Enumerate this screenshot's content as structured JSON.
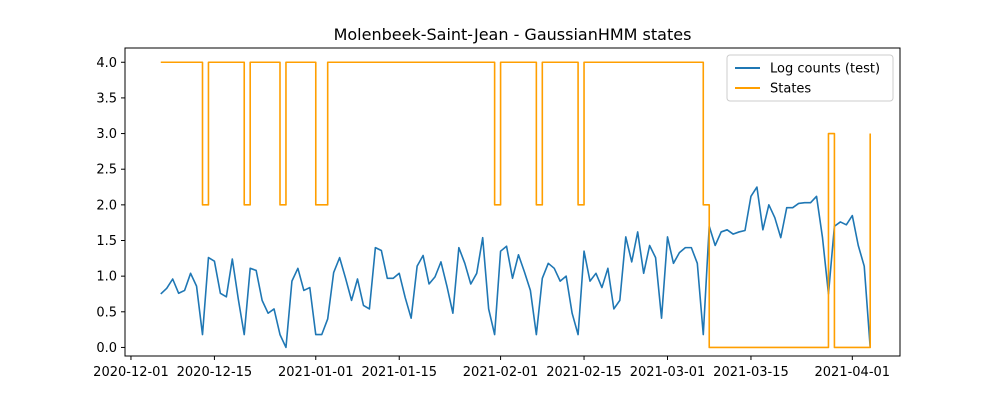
{
  "chart_data": {
    "type": "line",
    "title": "Molenbeek-Saint-Jean - GaussianHMM states",
    "xlabel": "",
    "ylabel": "",
    "x_start": "2020-12-06",
    "x_step_days": 1,
    "xlim": [
      "2020-11-30",
      "2021-04-09"
    ],
    "ylim": [
      -0.12,
      4.2
    ],
    "x_ticks": [
      "2020-12-01",
      "2020-12-15",
      "2021-01-01",
      "2021-01-15",
      "2021-02-01",
      "2021-02-15",
      "2021-03-01",
      "2021-03-15",
      "2021-04-01"
    ],
    "y_ticks": [
      "0.0",
      "0.5",
      "1.0",
      "1.5",
      "2.0",
      "2.5",
      "3.0",
      "3.5",
      "4.0"
    ],
    "legend_position": "top-right",
    "grid": false,
    "series": [
      {
        "name": "Log counts (test)",
        "color": "#1f77b4",
        "values": [
          0.75,
          0.83,
          0.96,
          0.76,
          0.8,
          1.04,
          0.86,
          0.18,
          1.26,
          1.21,
          0.76,
          0.71,
          1.24,
          0.68,
          0.18,
          1.11,
          1.08,
          0.66,
          0.48,
          0.54,
          0.18,
          0.0,
          0.93,
          1.11,
          0.8,
          0.84,
          0.18,
          0.18,
          0.4,
          1.05,
          1.26,
          0.97,
          0.66,
          0.96,
          0.59,
          0.54,
          1.4,
          1.36,
          0.97,
          0.97,
          1.04,
          0.7,
          0.41,
          1.14,
          1.29,
          0.89,
          0.99,
          1.2,
          0.86,
          0.48,
          1.4,
          1.18,
          0.89,
          1.04,
          1.54,
          0.54,
          0.18,
          1.35,
          1.42,
          0.97,
          1.3,
          1.06,
          0.8,
          0.18,
          0.97,
          1.18,
          1.11,
          0.93,
          1.0,
          0.48,
          0.18,
          1.35,
          0.93,
          1.04,
          0.84,
          1.11,
          0.54,
          0.66,
          1.55,
          1.2,
          1.62,
          1.04,
          1.43,
          1.26,
          0.41,
          1.55,
          1.18,
          1.33,
          1.4,
          1.4,
          1.18,
          0.18,
          1.7,
          1.43,
          1.62,
          1.65,
          1.59,
          1.62,
          1.64,
          2.12,
          2.25,
          1.65,
          2.0,
          1.82,
          1.54,
          1.96,
          1.96,
          2.02,
          2.03,
          2.03,
          2.12,
          1.54,
          0.75,
          1.7,
          1.76,
          1.72,
          1.85,
          1.43,
          1.14,
          0.0
        ]
      },
      {
        "name": "States",
        "color": "#ff9f00",
        "step": true,
        "values": [
          4,
          4,
          4,
          4,
          4,
          4,
          4,
          2,
          4,
          4,
          4,
          4,
          4,
          4,
          2,
          4,
          4,
          4,
          4,
          4,
          2,
          4,
          4,
          4,
          4,
          4,
          2,
          2,
          4,
          4,
          4,
          4,
          4,
          4,
          4,
          4,
          4,
          4,
          4,
          4,
          4,
          4,
          4,
          4,
          4,
          4,
          4,
          4,
          4,
          4,
          4,
          4,
          4,
          4,
          4,
          4,
          2,
          4,
          4,
          4,
          4,
          4,
          4,
          2,
          4,
          4,
          4,
          4,
          4,
          4,
          2,
          4,
          4,
          4,
          4,
          4,
          4,
          4,
          4,
          4,
          4,
          4,
          4,
          4,
          4,
          4,
          4,
          4,
          4,
          4,
          4,
          2,
          0,
          0,
          0,
          0,
          0,
          0,
          0,
          0,
          0,
          0,
          0,
          0,
          0,
          0,
          0,
          0,
          0,
          0,
          0,
          0,
          3,
          0,
          0,
          0,
          0,
          0,
          0,
          3
        ]
      }
    ]
  }
}
